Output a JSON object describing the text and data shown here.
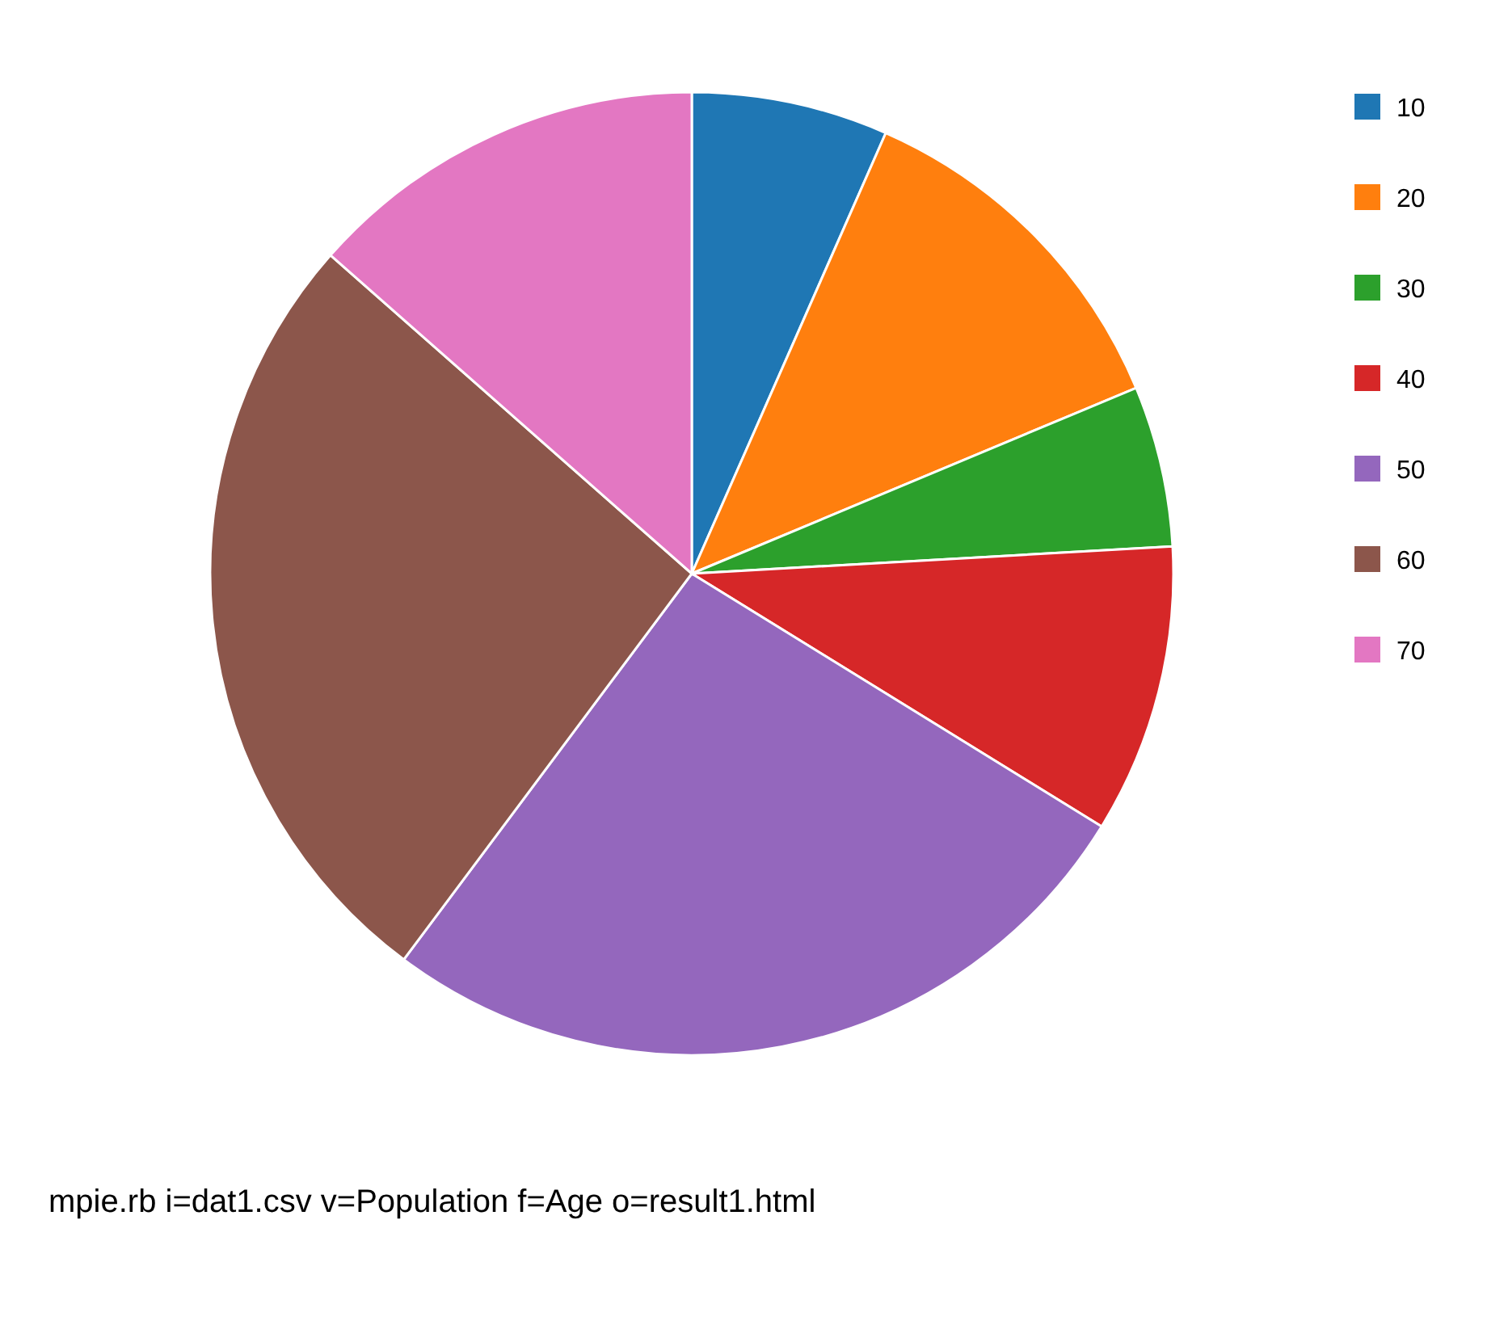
{
  "chart_data": {
    "type": "pie",
    "categories": [
      "10",
      "20",
      "30",
      "40",
      "50",
      "60",
      "70"
    ],
    "values": [
      6.6,
      12.1,
      5.4,
      9.7,
      26.4,
      26.3,
      13.5
    ],
    "colors": [
      "#1f77b4",
      "#ff7f0e",
      "#2ca02c",
      "#d62728",
      "#9467bd",
      "#8c564b",
      "#e377c2"
    ],
    "legend": "top right",
    "annotations": [
      "mpie.rb i=dat1.csv v=Population f=Age o=result1.html"
    ]
  }
}
